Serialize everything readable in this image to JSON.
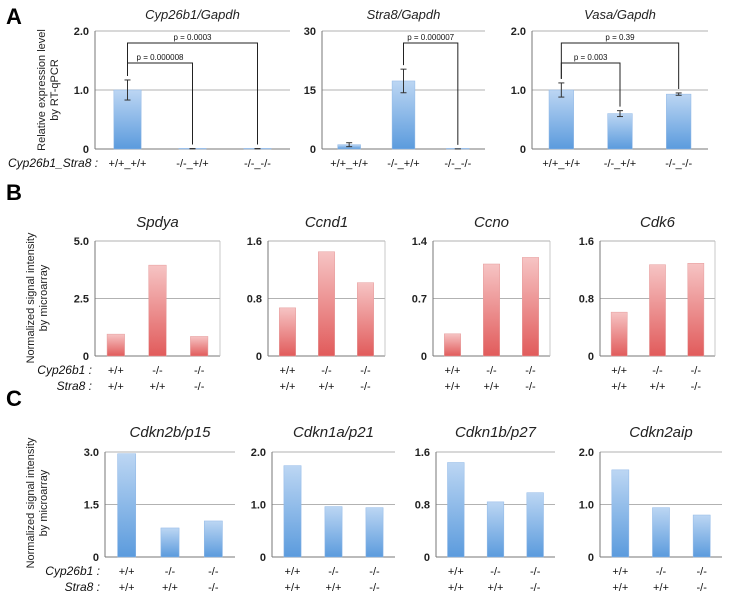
{
  "panels": [
    {
      "letter": "A",
      "ylabel": [
        "Relative expression level",
        "by RT-qPCR"
      ]
    },
    {
      "letter": "B",
      "ylabel": [
        "Normalized signal intensity",
        "by microarray"
      ]
    },
    {
      "letter": "C",
      "ylabel": [
        "Normalized signal intensity",
        "by microarray"
      ]
    }
  ],
  "row_labels": {
    "A": [
      "Cyp26b1_Stra8 :"
    ],
    "B": [
      "Cyp26b1 :",
      "Stra8 :"
    ],
    "C": [
      "Cyp26b1 :",
      "Stra8 :"
    ]
  },
  "colors": {
    "blue_top": "#bcd6f3",
    "blue_bottom": "#5b9bdd",
    "red_top": "#f6c4c4",
    "red_bottom": "#e15b5b",
    "grid": "#999999",
    "axis": "#777777"
  },
  "chart_data": [
    {
      "type": "bar",
      "panel": "A",
      "title": "Cyp26b1/Gapdh",
      "categories": [
        "+/+_+/+",
        "-/-_+/+",
        "-/-_-/-"
      ],
      "values": [
        1.0,
        0.005,
        0.005
      ],
      "errors": [
        0.17,
        0.003,
        0.003
      ],
      "ylim": [
        0,
        2.0
      ],
      "yticks": [
        "0",
        "1.0",
        "2.0"
      ],
      "color": "blue",
      "brackets": [
        {
          "from": 0,
          "to": 2,
          "label": "p = 0.0003"
        },
        {
          "from": 0,
          "to": 1,
          "label": "p = 0.000008"
        }
      ]
    },
    {
      "type": "bar",
      "panel": "A",
      "title": "Stra8/Gapdh",
      "categories": [
        "+/+_+/+",
        "-/-_+/+",
        "-/-_-/-"
      ],
      "values": [
        1.1,
        17.3,
        0.02
      ],
      "errors": [
        0.5,
        3.0,
        0.01
      ],
      "ylim": [
        0,
        30
      ],
      "yticks": [
        "0",
        "15",
        "30"
      ],
      "color": "blue",
      "brackets": [
        {
          "from": 1,
          "to": 2,
          "label": "p = 0.000007"
        }
      ]
    },
    {
      "type": "bar",
      "panel": "A",
      "title": "Vasa/Gapdh",
      "categories": [
        "+/+_+/+",
        "-/-_+/+",
        "-/-_-/-"
      ],
      "values": [
        1.0,
        0.6,
        0.93
      ],
      "errors": [
        0.12,
        0.05,
        0.02
      ],
      "ylim": [
        0,
        2.0
      ],
      "yticks": [
        "0",
        "1.0",
        "2.0"
      ],
      "color": "blue",
      "brackets": [
        {
          "from": 0,
          "to": 2,
          "label": "p = 0.39"
        },
        {
          "from": 0,
          "to": 1,
          "label": "p = 0.003"
        }
      ]
    },
    {
      "type": "bar",
      "panel": "B",
      "title": "Spdya",
      "categories": [
        [
          "+/+",
          "+/+"
        ],
        [
          "-/-",
          "+/+"
        ],
        [
          "-/-",
          "-/-"
        ]
      ],
      "values": [
        0.95,
        3.95,
        0.85
      ],
      "ylim": [
        0,
        5.0
      ],
      "yticks": [
        "0",
        "2.5",
        "5.0"
      ],
      "color": "red"
    },
    {
      "type": "bar",
      "panel": "B",
      "title": "Ccnd1",
      "categories": [
        [
          "+/+",
          "+/+"
        ],
        [
          "-/-",
          "+/+"
        ],
        [
          "-/-",
          "-/-"
        ]
      ],
      "values": [
        0.67,
        1.45,
        1.02
      ],
      "ylim": [
        0,
        1.6
      ],
      "yticks": [
        "0",
        "0.8",
        "1.6"
      ],
      "color": "red"
    },
    {
      "type": "bar",
      "panel": "B",
      "title": "Ccno",
      "categories": [
        [
          "+/+",
          "+/+"
        ],
        [
          "-/-",
          "+/+"
        ],
        [
          "-/-",
          "-/-"
        ]
      ],
      "values": [
        0.27,
        1.12,
        1.2
      ],
      "ylim": [
        0,
        1.4
      ],
      "yticks": [
        "0",
        "0.7",
        "1.4"
      ],
      "color": "red"
    },
    {
      "type": "bar",
      "panel": "B",
      "title": "Cdk6",
      "categories": [
        [
          "+/+",
          "+/+"
        ],
        [
          "-/-",
          "+/+"
        ],
        [
          "-/-",
          "-/-"
        ]
      ],
      "values": [
        0.61,
        1.27,
        1.29
      ],
      "ylim": [
        0,
        1.6
      ],
      "yticks": [
        "0",
        "0.8",
        "1.6"
      ],
      "color": "red"
    },
    {
      "type": "bar",
      "panel": "C",
      "title": "Cdkn2b/p15",
      "categories": [
        [
          "+/+",
          "+/+"
        ],
        [
          "-/-",
          "+/+"
        ],
        [
          "-/-",
          "-/-"
        ]
      ],
      "values": [
        2.95,
        0.83,
        1.03
      ],
      "ylim": [
        0,
        3.0
      ],
      "yticks": [
        "0",
        "1.5",
        "3.0"
      ],
      "color": "blue"
    },
    {
      "type": "bar",
      "panel": "C",
      "title": "Cdkn1a/p21",
      "categories": [
        [
          "+/+",
          "+/+"
        ],
        [
          "-/-",
          "+/+"
        ],
        [
          "-/-",
          "-/-"
        ]
      ],
      "values": [
        1.74,
        0.96,
        0.94
      ],
      "ylim": [
        0,
        2.0
      ],
      "yticks": [
        "0",
        "1.0",
        "2.0"
      ],
      "color": "blue"
    },
    {
      "type": "bar",
      "panel": "C",
      "title": "Cdkn1b/p27",
      "categories": [
        [
          "+/+",
          "+/+"
        ],
        [
          "-/-",
          "+/+"
        ],
        [
          "-/-",
          "-/-"
        ]
      ],
      "values": [
        1.44,
        0.84,
        0.98
      ],
      "ylim": [
        0,
        1.6
      ],
      "yticks": [
        "0",
        "0.8",
        "1.6"
      ],
      "color": "blue"
    },
    {
      "type": "bar",
      "panel": "C",
      "title": "Cdkn2aip",
      "categories": [
        [
          "+/+",
          "+/+"
        ],
        [
          "-/-",
          "+/+"
        ],
        [
          "-/-",
          "-/-"
        ]
      ],
      "values": [
        1.66,
        0.94,
        0.8
      ],
      "ylim": [
        0,
        2.0
      ],
      "yticks": [
        "0",
        "1.0",
        "2.0"
      ],
      "color": "blue"
    }
  ]
}
